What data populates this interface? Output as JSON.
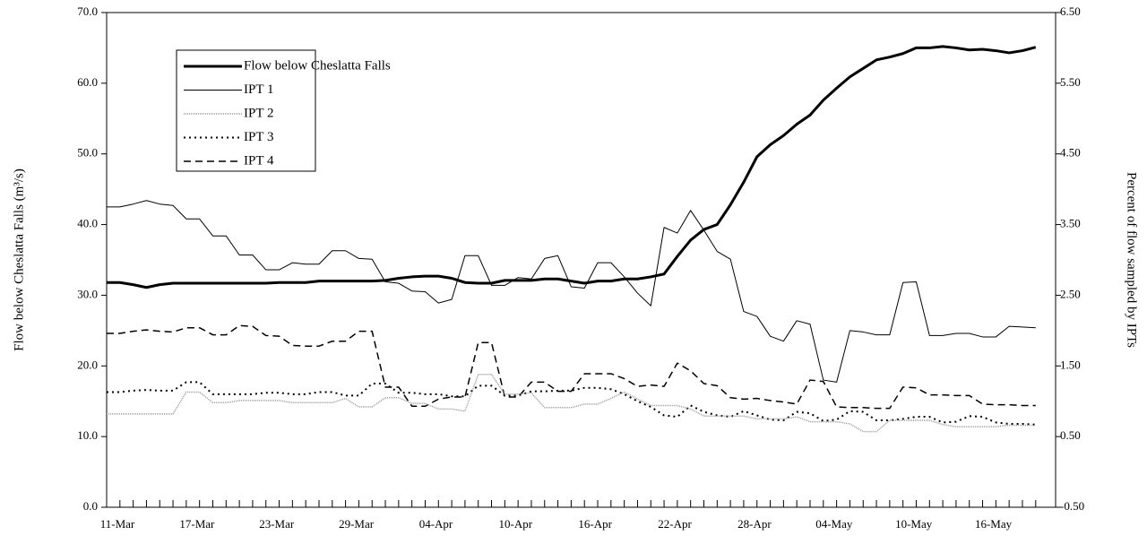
{
  "chart_data": {
    "type": "line",
    "y_label": "Flow below Cheslatta Falls (m³/s)",
    "y2_label": "Percent of flow sampled by IPTs",
    "categories": [
      "11-Mar",
      null,
      null,
      null,
      null,
      null,
      "17-Mar",
      null,
      null,
      null,
      null,
      null,
      "23-Mar",
      null,
      null,
      null,
      null,
      null,
      "29-Mar",
      null,
      null,
      null,
      null,
      null,
      "04-Apr",
      null,
      null,
      null,
      null,
      null,
      "10-Apr",
      null,
      null,
      null,
      null,
      null,
      "16-Apr",
      null,
      null,
      null,
      null,
      null,
      "22-Apr",
      null,
      null,
      null,
      null,
      null,
      "28-Apr",
      null,
      null,
      null,
      null,
      null,
      "04-May",
      null,
      null,
      null,
      null,
      null,
      "10-May",
      null,
      null,
      null,
      null,
      null,
      "16-May",
      null,
      null,
      null,
      null
    ],
    "ylim": [
      0,
      70
    ],
    "yticks": [
      {
        "value": 0,
        "label": "0.0"
      },
      {
        "value": 10,
        "label": "10.0"
      },
      {
        "value": 20,
        "label": "20.0"
      },
      {
        "value": 30,
        "label": "30.0"
      },
      {
        "value": 40,
        "label": "40.0"
      },
      {
        "value": 50,
        "label": "50.0"
      },
      {
        "value": 60,
        "label": "60.0"
      },
      {
        "value": 70,
        "label": "70.0"
      }
    ],
    "y2lim": [
      -0.5,
      6.5
    ],
    "y2ticks": [
      {
        "value": -0.5,
        "label": "-0.50"
      },
      {
        "value": 0.5,
        "label": "0.50"
      },
      {
        "value": 1.5,
        "label": "1.50"
      },
      {
        "value": 2.5,
        "label": "2.50"
      },
      {
        "value": 3.5,
        "label": "3.50"
      },
      {
        "value": 4.5,
        "label": "4.50"
      },
      {
        "value": 5.5,
        "label": "5.50"
      },
      {
        "value": 6.5,
        "label": "6.50"
      }
    ],
    "grid": false,
    "legend": "upper left",
    "series": [
      {
        "name": "Flow below Cheslatta Falls",
        "color": "#000000",
        "style": "thick",
        "axis": "y",
        "values": [
          31.8,
          31.8,
          31.5,
          31.1,
          31.5,
          31.7,
          31.7,
          31.7,
          31.7,
          31.7,
          31.7,
          31.7,
          31.7,
          31.8,
          31.8,
          31.8,
          32.0,
          32.0,
          32.0,
          32.0,
          32.0,
          32.1,
          32.4,
          32.6,
          32.7,
          32.7,
          32.4,
          31.8,
          31.7,
          31.7,
          32.1,
          32.1,
          32.1,
          32.3,
          32.3,
          32.0,
          31.7,
          32.0,
          32.0,
          32.3,
          32.3,
          32.6,
          33.0,
          35.5,
          37.8,
          39.3,
          40.0,
          42.8,
          46.0,
          49.6,
          51.3,
          52.6,
          54.2,
          55.5,
          57.6,
          59.3,
          60.9,
          62.1,
          63.3,
          63.7,
          64.2,
          65.0,
          65.0,
          65.2,
          65.0,
          64.7,
          64.8,
          64.6,
          64.3,
          64.6,
          65.1
        ]
      },
      {
        "name": "IPT 1",
        "color": "#000000",
        "style": "thin",
        "axis": "y2",
        "values": [
          3.75,
          3.75,
          3.79,
          3.84,
          3.79,
          3.77,
          3.58,
          3.58,
          3.34,
          3.34,
          3.07,
          3.07,
          2.86,
          2.86,
          2.96,
          2.94,
          2.94,
          3.13,
          3.13,
          3.02,
          3.01,
          2.69,
          2.67,
          2.56,
          2.55,
          2.39,
          2.44,
          3.06,
          3.06,
          2.64,
          2.64,
          2.75,
          2.73,
          3.02,
          3.06,
          2.62,
          2.6,
          2.96,
          2.96,
          2.76,
          2.53,
          2.35,
          3.46,
          3.38,
          3.7,
          3.42,
          3.12,
          3.01,
          2.27,
          2.2,
          1.92,
          1.85,
          2.14,
          2.09,
          1.3,
          1.27,
          2.0,
          1.98,
          1.94,
          1.94,
          2.68,
          2.69,
          1.93,
          1.93,
          1.96,
          1.96,
          1.91,
          1.91,
          2.06,
          2.05,
          2.04
        ]
      },
      {
        "name": "IPT 2",
        "color": "#999999",
        "style": "dense",
        "axis": "y2",
        "values": [
          0.82,
          0.82,
          0.82,
          0.82,
          0.82,
          0.82,
          1.13,
          1.13,
          0.98,
          0.98,
          1.01,
          1.01,
          1.01,
          1.01,
          0.98,
          0.98,
          0.98,
          0.98,
          1.04,
          0.92,
          0.92,
          1.05,
          1.05,
          0.97,
          0.97,
          0.89,
          0.89,
          0.86,
          1.38,
          1.38,
          1.1,
          1.1,
          1.12,
          0.91,
          0.91,
          0.91,
          0.96,
          0.96,
          1.04,
          1.13,
          1.03,
          0.94,
          0.94,
          0.94,
          0.89,
          0.79,
          0.79,
          0.79,
          0.79,
          0.75,
          0.75,
          0.75,
          0.78,
          0.71,
          0.71,
          0.71,
          0.68,
          0.57,
          0.57,
          0.73,
          0.73,
          0.73,
          0.73,
          0.67,
          0.64,
          0.64,
          0.64,
          0.64,
          0.66,
          0.66,
          0.66
        ]
      },
      {
        "name": "IPT 3",
        "color": "#000000",
        "style": "dotted",
        "axis": "y2",
        "values": [
          1.13,
          1.13,
          1.15,
          1.16,
          1.15,
          1.15,
          1.27,
          1.27,
          1.1,
          1.1,
          1.1,
          1.1,
          1.12,
          1.12,
          1.1,
          1.1,
          1.13,
          1.13,
          1.08,
          1.08,
          1.25,
          1.25,
          1.12,
          1.12,
          1.1,
          1.1,
          1.07,
          1.07,
          1.22,
          1.22,
          1.08,
          1.08,
          1.14,
          1.14,
          1.15,
          1.15,
          1.19,
          1.19,
          1.17,
          1.1,
          1.0,
          0.92,
          0.8,
          0.78,
          0.94,
          0.85,
          0.8,
          0.78,
          0.86,
          0.8,
          0.74,
          0.73,
          0.85,
          0.83,
          0.72,
          0.74,
          0.86,
          0.85,
          0.73,
          0.73,
          0.75,
          0.78,
          0.78,
          0.7,
          0.71,
          0.79,
          0.78,
          0.7,
          0.68,
          0.68,
          0.67
        ]
      },
      {
        "name": "IPT 4",
        "color": "#000000",
        "style": "dashed",
        "axis": "y2",
        "values": [
          1.96,
          1.96,
          1.99,
          2.01,
          1.99,
          1.98,
          2.04,
          2.04,
          1.94,
          1.94,
          2.07,
          2.06,
          1.93,
          1.92,
          1.79,
          1.78,
          1.78,
          1.85,
          1.85,
          1.99,
          1.99,
          1.2,
          1.2,
          0.93,
          0.93,
          1.03,
          1.06,
          1.06,
          1.83,
          1.83,
          1.06,
          1.06,
          1.27,
          1.27,
          1.14,
          1.14,
          1.39,
          1.39,
          1.39,
          1.32,
          1.21,
          1.23,
          1.21,
          1.54,
          1.43,
          1.25,
          1.22,
          1.05,
          1.03,
          1.04,
          1.01,
          0.99,
          0.96,
          1.3,
          1.28,
          0.92,
          0.91,
          0.91,
          0.9,
          0.9,
          1.2,
          1.19,
          1.09,
          1.09,
          1.08,
          1.08,
          0.96,
          0.95,
          0.95,
          0.94,
          0.94
        ]
      }
    ]
  }
}
